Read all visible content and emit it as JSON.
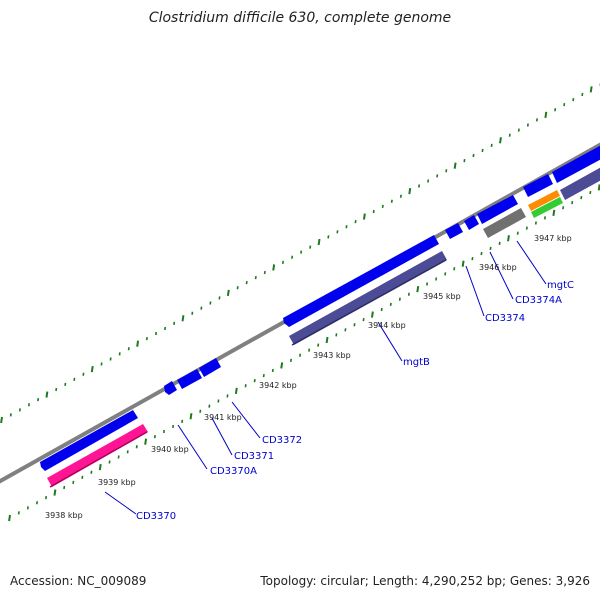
{
  "title": "Clostridium difficile 630, complete genome",
  "footer": {
    "accession": "Accession: NC_009089",
    "summary": "Topology: circular; Length: 4,290,252 bp; Genes: 3,926"
  },
  "colors": {
    "backbone": "#808080",
    "forward_gene": "#0000ee",
    "reverse_gene": "#4b4b96",
    "pink_gene": "#ff1493",
    "gray_gene": "#707070",
    "orange_gene": "#ff8c00",
    "green_gene": "#33cc33",
    "tick": "#1e7a1e",
    "label_line": "#0000cc"
  },
  "kbp_labels": [
    "3938 kbp",
    "3939 kbp",
    "3940 kbp",
    "3941 kbp",
    "3942 kbp",
    "3943 kbp",
    "3944 kbp",
    "3945 kbp",
    "3946 kbp",
    "3947 kbp"
  ],
  "gene_labels": [
    "CD3370",
    "CD3370A",
    "CD3371",
    "CD3372",
    "mgtB",
    "CD3374",
    "CD3374A",
    "mgtC"
  ]
}
